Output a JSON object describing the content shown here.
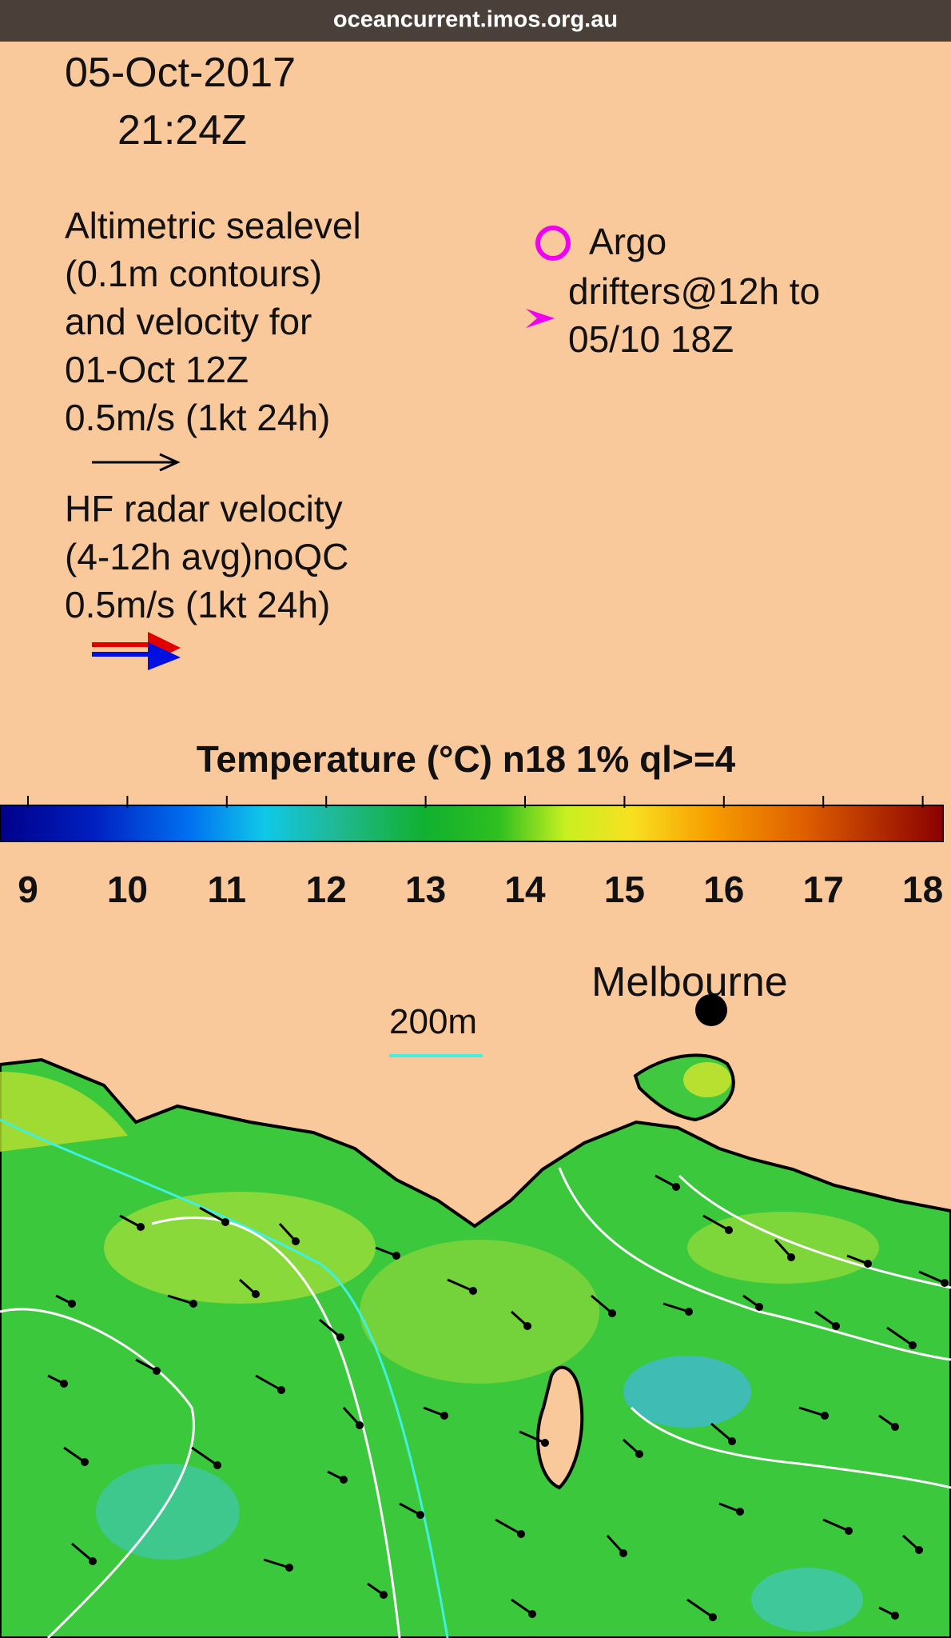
{
  "browser": {
    "url": "oceancurrent.imos.org.au"
  },
  "map": {
    "date": "05-Oct-2017",
    "time": "21:24Z",
    "altimetry_lines": [
      "Altimetric sealevel",
      "(0.1m contours)",
      "and velocity for",
      "01-Oct 12Z",
      "0.5m/s (1kt 24h)"
    ],
    "hf_lines": [
      "HF radar velocity",
      "(4-12h avg)noQC",
      "0.5m/s (1kt 24h)"
    ],
    "argo": "Argo",
    "drifter_lines": [
      "drifters@12h to",
      "05/10 18Z"
    ],
    "colorbar": {
      "title": "Temperature (°C) n18 1% ql>=4",
      "ticks": [
        9,
        10,
        11,
        12,
        13,
        14,
        15,
        16,
        17,
        18
      ]
    },
    "city": "Melbourne",
    "contour_label": "200m"
  }
}
